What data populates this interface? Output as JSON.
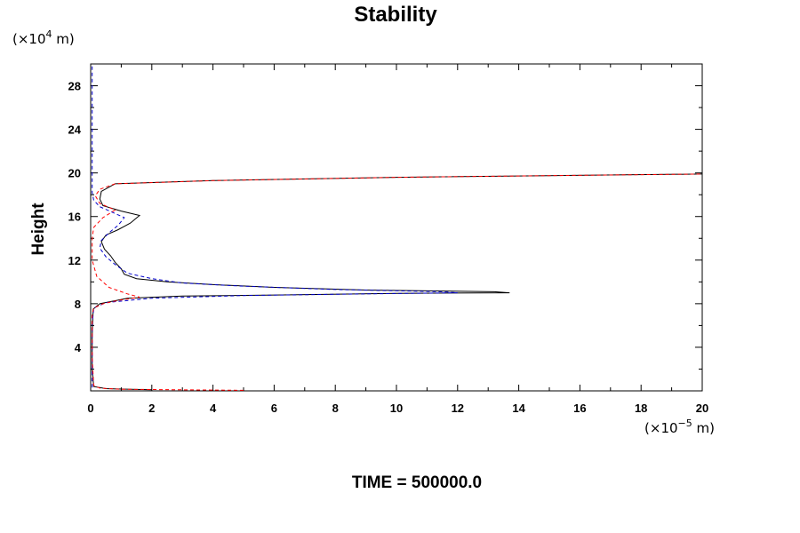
{
  "chart_data": {
    "type": "line",
    "title": "Stability",
    "ylabel": "Height",
    "xlabel": "",
    "y_unit": {
      "prefix": "(×10",
      "exp": "4",
      "suffix": " m)"
    },
    "x_unit": {
      "prefix": "(×10",
      "exp": "−5",
      "suffix": " m)"
    },
    "footer": "TIME = 500000.0",
    "xlim": [
      0,
      20
    ],
    "ylim": [
      0,
      30
    ],
    "x_ticks": [
      0,
      2,
      4,
      6,
      8,
      10,
      12,
      14,
      16,
      18,
      20
    ],
    "y_ticks": [
      4,
      8,
      12,
      16,
      20,
      24,
      28
    ],
    "grid": false,
    "series": [
      {
        "color": "#000000",
        "dash": "solid",
        "points": [
          [
            2.0,
            0.1
          ],
          [
            0.5,
            0.2
          ],
          [
            0.1,
            0.4
          ],
          [
            0.05,
            2
          ],
          [
            0.05,
            5
          ],
          [
            0.08,
            7.5
          ],
          [
            0.3,
            8.0
          ],
          [
            1.2,
            8.5
          ],
          [
            3,
            8.7
          ],
          [
            6,
            8.8
          ],
          [
            10,
            8.95
          ],
          [
            13.7,
            9.0
          ],
          [
            13.2,
            9.1
          ],
          [
            9,
            9.25
          ],
          [
            6,
            9.5
          ],
          [
            4,
            9.75
          ],
          [
            2.5,
            10.0
          ],
          [
            1.5,
            10.3
          ],
          [
            1.1,
            10.7
          ],
          [
            1.0,
            11.2
          ],
          [
            0.8,
            11.8
          ],
          [
            0.65,
            12.4
          ],
          [
            0.45,
            13.0
          ],
          [
            0.35,
            13.7
          ],
          [
            0.5,
            14.3
          ],
          [
            0.9,
            14.8
          ],
          [
            1.3,
            15.4
          ],
          [
            1.6,
            16.1
          ],
          [
            1.0,
            16.5
          ],
          [
            0.4,
            17.0
          ],
          [
            0.3,
            17.6
          ],
          [
            0.35,
            18.3
          ],
          [
            0.8,
            19.0
          ],
          [
            4,
            19.3
          ],
          [
            10,
            19.6
          ],
          [
            15,
            19.75
          ],
          [
            20,
            19.9
          ]
        ]
      },
      {
        "color": "#0000cc",
        "dash": "dashed",
        "points": [
          [
            0.05,
            0.3
          ],
          [
            0.05,
            2
          ],
          [
            0.05,
            6
          ],
          [
            0.1,
            7.6
          ],
          [
            0.5,
            8.1
          ],
          [
            2,
            8.5
          ],
          [
            5,
            8.75
          ],
          [
            9,
            8.9
          ],
          [
            12,
            9.0
          ],
          [
            11.5,
            9.1
          ],
          [
            8,
            9.3
          ],
          [
            5,
            9.6
          ],
          [
            3,
            9.9
          ],
          [
            2,
            10.3
          ],
          [
            1.2,
            10.8
          ],
          [
            0.8,
            11.6
          ],
          [
            0.5,
            12.3
          ],
          [
            0.3,
            13.1
          ],
          [
            0.35,
            13.8
          ],
          [
            0.6,
            14.5
          ],
          [
            0.9,
            15.2
          ],
          [
            1.1,
            15.9
          ],
          [
            0.7,
            16.4
          ],
          [
            0.3,
            16.9
          ],
          [
            0.1,
            17.5
          ],
          [
            0.05,
            18.2
          ],
          [
            0.05,
            20
          ],
          [
            0.05,
            24
          ],
          [
            0.05,
            28
          ],
          [
            0.05,
            29.8
          ]
        ]
      },
      {
        "color": "#ff0000",
        "dash": "dashed",
        "points": [
          [
            5,
            0.05
          ],
          [
            3,
            0.1
          ],
          [
            1,
            0.15
          ],
          [
            0.3,
            0.25
          ],
          [
            0.1,
            0.5
          ],
          [
            0.05,
            3
          ],
          [
            0.05,
            7
          ],
          [
            0.1,
            7.6
          ],
          [
            0.4,
            8.0
          ],
          [
            0.9,
            8.3
          ],
          [
            1.6,
            8.6
          ],
          [
            1.2,
            8.9
          ],
          [
            0.6,
            9.5
          ],
          [
            0.2,
            10.5
          ],
          [
            0.05,
            12
          ],
          [
            0.05,
            14
          ],
          [
            0.1,
            15
          ],
          [
            0.4,
            15.9
          ],
          [
            0.8,
            16.6
          ],
          [
            0.3,
            17.2
          ],
          [
            0.15,
            17.9
          ],
          [
            0.3,
            18.5
          ],
          [
            0.8,
            19.0
          ],
          [
            4,
            19.3
          ],
          [
            10,
            19.6
          ],
          [
            15,
            19.75
          ],
          [
            20,
            19.9
          ]
        ]
      }
    ]
  }
}
